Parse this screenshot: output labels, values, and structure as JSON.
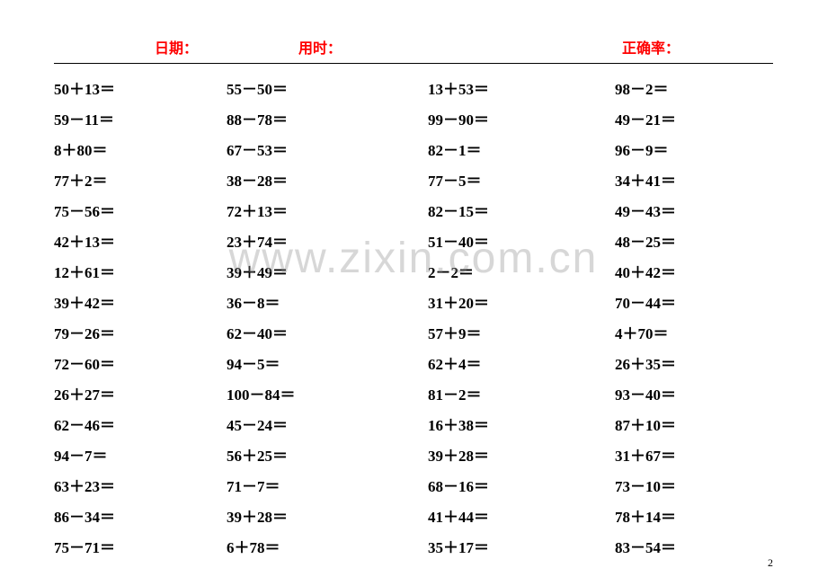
{
  "header": {
    "date_label": "日期：",
    "time_label": "用时：",
    "accuracy_label": "正确率："
  },
  "watermark": "www.zixin.com.cn",
  "page_number": "2",
  "columns": {
    "col1": [
      "50＋13＝",
      "59－11＝",
      "8＋80＝",
      "77＋2＝",
      "75－56＝",
      "42＋13＝",
      "12＋61＝",
      "39＋42＝",
      "79－26＝",
      "72－60＝",
      "26＋27＝",
      "62－46＝",
      "94－7＝",
      "63＋23＝",
      "86－34＝",
      "75－71＝"
    ],
    "col2": [
      "55－50＝",
      "88－78＝",
      "67－53＝",
      "38－28＝",
      "72＋13＝",
      "23＋74＝",
      "39＋49＝",
      "36－8＝",
      "62－40＝",
      "94－5＝",
      "100－84＝",
      "45－24＝",
      "56＋25＝",
      "71－7＝",
      "39＋28＝",
      "6＋78＝"
    ],
    "col3": [
      "13＋53＝",
      "99－90＝",
      "82－1＝",
      "77－5＝",
      "82－15＝",
      "51－40＝",
      "2－2＝",
      "31＋20＝",
      "57＋9＝",
      "62＋4＝",
      "81－2＝",
      "16＋38＝",
      "39＋28＝",
      "68－16＝",
      "41＋44＝",
      "35＋17＝"
    ],
    "col4": [
      "98－2＝",
      "49－21＝",
      "96－9＝",
      "34＋41＝",
      "49－43＝",
      "48－25＝",
      "40＋42＝",
      "70－44＝",
      "4＋70＝",
      "26＋35＝",
      "93－40＝",
      "87＋10＝",
      "31＋67＝",
      "73－10＝",
      "78＋14＝",
      "83－54＝"
    ]
  }
}
